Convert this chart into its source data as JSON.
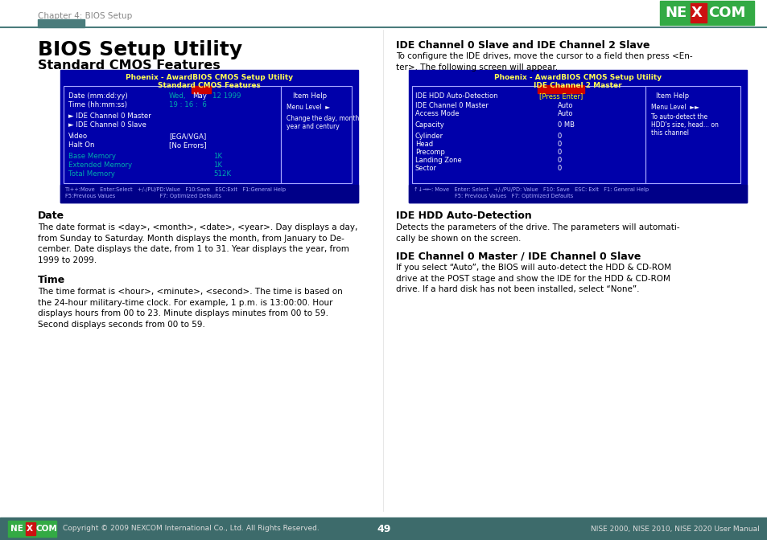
{
  "bg_color": "#ffffff",
  "header_teal": "#4a7c7c",
  "chapter_text": "Chapter 4: BIOS Setup",
  "title_main": "BIOS Setup Utility",
  "title_sub": "Standard CMOS Features",
  "bios1_title1": "Phoenix - AwardBIOS CMOS Setup Utility",
  "bios1_title2": "Standard CMOS Features",
  "bios2_title1": "Phoenix - AwardBIOS CMOS Setup Utility",
  "bios2_title2": "IDE Channel 2 Master",
  "bios_bg": "#0000aa",
  "bios_title_color": "#ffff55",
  "bios_border": "#aaaaff",
  "bios_white": "#ffffff",
  "bios_cyan": "#00aaaa",
  "bios_yellow": "#ffff00",
  "bios_red": "#cc0000",
  "bios_red_text": "#ff5555",
  "right_heading": "IDE Channel 0 Slave and IDE Channel 2 Slave",
  "right_para": "To configure the IDE drives, move the cursor to a field then press <En-\nter>. The following screen will appear.",
  "date_heading": "Date",
  "date_text": "The date format is <day>, <month>, <date>, <year>. Day displays a day,\nfrom Sunday to Saturday. Month displays the month, from January to De-\ncember. Date displays the date, from 1 to 31. Year displays the year, from\n1999 to 2099.",
  "time_heading": "Time",
  "time_text": "The time format is <hour>, <minute>, <second>. The time is based on\nthe 24-hour military-time clock. For example, 1 p.m. is 13:00:00. Hour\ndisplays hours from 00 to 23. Minute displays minutes from 00 to 59.\nSecond displays seconds from 00 to 59.",
  "ide_hdd_heading": "IDE HDD Auto-Detection",
  "ide_hdd_text": "Detects the parameters of the drive. The parameters will automati-\ncally be shown on the screen.",
  "ide_ch_heading": "IDE Channel 0 Master / IDE Channel 0 Slave",
  "ide_ch_text": "If you select “Auto”, the BIOS will auto-detect the HDD & CD-ROM\ndrive at the POST stage and show the IDE for the HDD & CD-ROM\ndrive. If a hard disk has not been installed, select “None”.",
  "footer_text": "Copyright © 2009 NEXCOM International Co., Ltd. All Rights Reserved.",
  "footer_page": "49",
  "footer_right": "NISE 2000, NISE 2010, NISE 2020 User Manual",
  "footer_bg": "#3d6b6b",
  "nexcom_green": "#33aa44",
  "nexcom_red": "#cc1111"
}
